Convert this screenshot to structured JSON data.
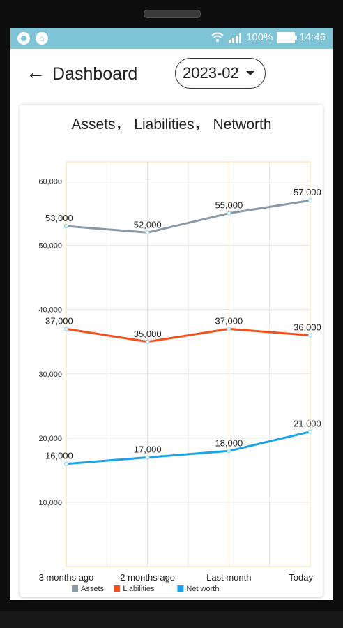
{
  "status_bar": {
    "battery": "100%",
    "time": "14:46",
    "icons": [
      "record-icon",
      "app-icon",
      "wifi-icon",
      "signal-icon",
      "battery-icon"
    ]
  },
  "header": {
    "back_icon": "arrow-left-icon",
    "title": "Dashboard",
    "period": "2023-02"
  },
  "chart_data": {
    "type": "line",
    "title": "Assets， Liabilities， Networth",
    "categories": [
      "3 months ago",
      "2 months ago",
      "Last month",
      "Today"
    ],
    "ylim": [
      0,
      63000
    ],
    "yticks": [
      "10,000",
      "20,000",
      "30,000",
      "40,000",
      "50,000",
      "60,000"
    ],
    "grid": true,
    "legend_position": "bottom",
    "series": [
      {
        "name": "Assets",
        "values": [
          53000,
          52000,
          55000,
          57000
        ],
        "labels": [
          "53,000",
          "52,000",
          "55,000",
          "57,000"
        ],
        "color": "#8a99a6"
      },
      {
        "name": "Liabilities",
        "values": [
          37000,
          35000,
          37000,
          36000
        ],
        "labels": [
          "37,000",
          "35,000",
          "37,000",
          "36,000"
        ],
        "color": "#f4511e"
      },
      {
        "name": "Net worth",
        "values": [
          16000,
          17000,
          18000,
          21000
        ],
        "labels": [
          "16,000",
          "17,000",
          "18,000",
          "21,000"
        ],
        "color": "#1aa3e8"
      }
    ]
  }
}
